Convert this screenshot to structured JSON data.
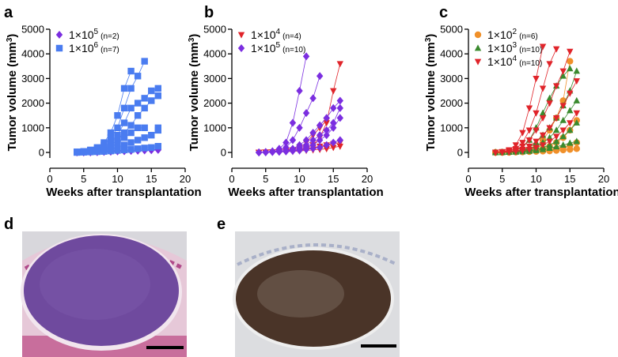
{
  "panel_labels": [
    "a",
    "b",
    "c",
    "d",
    "e"
  ],
  "chart_data": [
    {
      "type": "line",
      "ylabel": "Tumor volume (mm",
      "ylabel_exp": "3",
      "ylabel_end": ")",
      "xlabel": "Weeks after transplantation",
      "x": [
        4,
        5,
        6,
        7,
        8,
        9,
        10,
        11,
        12,
        13,
        14,
        15,
        16
      ],
      "xlim": [
        0,
        20
      ],
      "xticks": [
        0,
        5,
        10,
        15,
        20
      ],
      "ylim": [
        0,
        5000
      ],
      "yticks": [
        0,
        1000,
        2000,
        3000,
        4000,
        5000
      ],
      "series": [
        {
          "name_base": "1×10",
          "name_exp": "5",
          "n_label": "(n=2)",
          "color": "#7b2ee0",
          "marker": "diamond",
          "traces": [
            [
              0,
              0,
              10,
              20,
              30,
              40,
              60,
              70,
              80,
              90,
              100,
              110,
              120
            ],
            [
              0,
              0,
              0,
              10,
              20,
              30,
              40,
              50,
              60,
              70,
              80,
              90,
              100
            ]
          ]
        },
        {
          "name_base": "1×10",
          "name_exp": "6",
          "n_label": "(n=7)",
          "color": "#4a7cf0",
          "marker": "square",
          "traces": [
            [
              20,
              40,
              80,
              150,
              300,
              600,
              1000,
              1800,
              2600,
              3100,
              3700,
              null,
              null
            ],
            [
              20,
              40,
              100,
              200,
              400,
              800,
              1500,
              2600,
              3300,
              null,
              null,
              null,
              null
            ],
            [
              10,
              30,
              60,
              100,
              200,
              400,
              700,
              1200,
              1800,
              2000,
              2200,
              2500,
              2600
            ],
            [
              10,
              20,
              50,
              100,
              150,
              300,
              500,
              800,
              1100,
              1500,
              1800,
              2100,
              2300
            ],
            [
              10,
              20,
              40,
              60,
              100,
              200,
              400,
              600,
              800,
              1000,
              1000,
              null,
              1000
            ],
            [
              10,
              20,
              30,
              50,
              80,
              120,
              200,
              300,
              400,
              500,
              600,
              700,
              900
            ],
            [
              0,
              10,
              20,
              30,
              40,
              60,
              80,
              100,
              120,
              150,
              180,
              200,
              250
            ]
          ]
        }
      ]
    },
    {
      "type": "line",
      "ylabel": "Tumor volume (mm",
      "ylabel_exp": "3",
      "ylabel_end": ")",
      "xlabel": "Weeks after transplantation",
      "x": [
        4,
        5,
        6,
        7,
        8,
        9,
        10,
        11,
        12,
        13,
        14,
        15,
        16
      ],
      "xlim": [
        0,
        20
      ],
      "xticks": [
        0,
        5,
        10,
        15,
        20
      ],
      "ylim": [
        0,
        5000
      ],
      "yticks": [
        0,
        1000,
        2000,
        3000,
        4000,
        5000
      ],
      "series": [
        {
          "name_base": "1×10",
          "name_exp": "4",
          "n_label": "(n=4)",
          "color": "#e0242a",
          "marker": "tri-down",
          "traces": [
            [
              0,
              10,
              20,
              30,
              50,
              80,
              120,
              200,
              300,
              600,
              1200,
              2500,
              3600
            ],
            [
              0,
              10,
              20,
              40,
              60,
              100,
              200,
              400,
              700,
              1000,
              1300,
              null,
              null
            ],
            [
              0,
              10,
              20,
              30,
              40,
              60,
              100,
              150,
              200,
              250,
              300,
              350,
              400
            ],
            [
              0,
              0,
              10,
              20,
              30,
              40,
              60,
              80,
              100,
              120,
              150,
              200,
              250
            ]
          ]
        },
        {
          "name_base": "1×10",
          "name_exp": "5",
          "n_label": "(n=10)",
          "color": "#7b2ee0",
          "marker": "diamond",
          "traces": [
            [
              0,
              20,
              50,
              150,
              400,
              1200,
              2500,
              3900,
              null,
              null,
              null,
              null,
              null
            ],
            [
              0,
              10,
              30,
              80,
              200,
              500,
              1000,
              1600,
              2200,
              3100,
              null,
              null,
              null
            ],
            [
              0,
              10,
              20,
              40,
              80,
              150,
              300,
              500,
              800,
              1100,
              1400,
              1800,
              2100
            ],
            [
              0,
              10,
              20,
              30,
              60,
              100,
              200,
              300,
              500,
              700,
              900,
              1200,
              1800
            ],
            [
              0,
              10,
              20,
              30,
              50,
              80,
              120,
              200,
              300,
              500,
              700,
              1000,
              1400
            ],
            [
              0,
              10,
              20,
              30,
              40,
              60,
              80,
              120,
              160,
              200,
              300,
              400,
              500
            ]
          ]
        }
      ]
    },
    {
      "type": "line",
      "ylabel": "Tumor volume (mm",
      "ylabel_exp": "3",
      "ylabel_end": ")",
      "xlabel": "Weeks after transplantation",
      "x": [
        4,
        5,
        6,
        7,
        8,
        9,
        10,
        11,
        12,
        13,
        14,
        15,
        16
      ],
      "xlim": [
        0,
        20
      ],
      "xticks": [
        0,
        5,
        10,
        15,
        20
      ],
      "ylim": [
        0,
        5000
      ],
      "yticks": [
        0,
        1000,
        2000,
        3000,
        4000,
        5000
      ],
      "series": [
        {
          "name_base": "1×10",
          "name_exp": "2",
          "n_label": "(n=6)",
          "color": "#f0902a",
          "marker": "circle",
          "traces": [
            [
              0,
              10,
              20,
              30,
              60,
              120,
              250,
              500,
              900,
              1400,
              2100,
              3700,
              null
            ],
            [
              0,
              10,
              20,
              30,
              40,
              60,
              100,
              150,
              250,
              400,
              600,
              900,
              1300
            ],
            [
              0,
              0,
              10,
              20,
              30,
              40,
              60,
              80,
              110,
              150,
              200,
              280,
              400
            ],
            [
              0,
              0,
              0,
              10,
              20,
              30,
              40,
              50,
              60,
              80,
              100,
              120,
              150
            ]
          ]
        },
        {
          "name_base": "1×10",
          "name_exp": "3",
          "n_label": "(n=10)",
          "color": "#3a8a2e",
          "marker": "tri-up",
          "traces": [
            [
              0,
              10,
              30,
              80,
              200,
              500,
              1000,
              1600,
              2200,
              2700,
              3100,
              3400,
              null
            ],
            [
              0,
              10,
              20,
              50,
              100,
              200,
              400,
              700,
              1000,
              1400,
              1900,
              2500,
              3300
            ],
            [
              0,
              10,
              20,
              40,
              80,
              150,
              250,
              400,
              600,
              900,
              1300,
              1700,
              2100
            ],
            [
              0,
              10,
              20,
              30,
              50,
              80,
              120,
              200,
              300,
              450,
              650,
              900,
              1200
            ],
            [
              0,
              0,
              10,
              20,
              30,
              50,
              80,
              120,
              170,
              230,
              300,
              380,
              450
            ]
          ]
        },
        {
          "name_base": "1×10",
          "name_exp": "4",
          "n_label": "(n=10)",
          "color": "#e0242a",
          "marker": "tri-down",
          "traces": [
            [
              0,
              30,
              100,
              300,
              800,
              1800,
              3000,
              4300,
              null,
              null,
              null,
              null,
              null
            ],
            [
              0,
              20,
              60,
              150,
              400,
              900,
              1600,
              2600,
              3600,
              4200,
              null,
              null,
              null
            ],
            [
              0,
              10,
              40,
              100,
              250,
              500,
              900,
              1400,
              2000,
              2700,
              3300,
              4100,
              null
            ],
            [
              0,
              10,
              30,
              60,
              120,
              250,
              450,
              700,
              1000,
              1400,
              1900,
              2400,
              2900
            ],
            [
              0,
              10,
              20,
              40,
              70,
              120,
              200,
              300,
              450,
              650,
              900,
              1200,
              1600
            ]
          ]
        }
      ]
    }
  ]
}
